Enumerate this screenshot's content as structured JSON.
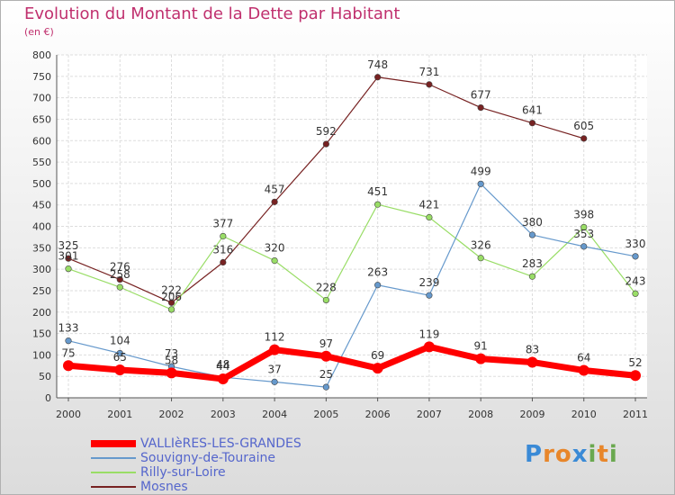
{
  "header": {
    "title": "Evolution du Montant de la Dette par Habitant",
    "unit": "(en €)"
  },
  "logo": {
    "letters": [
      "P",
      "r",
      "o",
      "x",
      "i",
      "t",
      "i"
    ],
    "colors": [
      "#3a8ad6",
      "#e8862a",
      "#e8862a",
      "#3a8ad6",
      "#6aa84f",
      "#e8862a",
      "#6aa84f"
    ]
  },
  "chart_data": {
    "type": "line",
    "title": "Evolution du Montant de la Dette par Habitant",
    "ylabel": "(en €)",
    "xlabel": "",
    "x": [
      "2000",
      "2001",
      "2002",
      "2003",
      "2004",
      "2005",
      "2006",
      "2007",
      "2008",
      "2009",
      "2010",
      "2011"
    ],
    "ylim": [
      0,
      800
    ],
    "yticks": [
      0,
      50,
      100,
      150,
      200,
      250,
      300,
      350,
      400,
      450,
      500,
      550,
      600,
      650,
      700,
      750,
      800
    ],
    "grid": true,
    "legend_position": "bottom-left",
    "series": [
      {
        "name": "VALLIèRES-LES-GRANDES",
        "color": "#ff0000",
        "values": [
          75,
          65,
          58,
          44,
          112,
          97,
          69,
          119,
          91,
          83,
          64,
          52
        ]
      },
      {
        "name": "Souvigny-de-Touraine",
        "color": "#6699cc",
        "values": [
          133,
          104,
          73,
          48,
          37,
          25,
          263,
          239,
          499,
          380,
          353,
          330
        ]
      },
      {
        "name": "Rilly-sur-Loire",
        "color": "#99dd66",
        "values": [
          301,
          258,
          206,
          377,
          320,
          228,
          451,
          421,
          326,
          283,
          398,
          243
        ]
      },
      {
        "name": "Mosnes",
        "color": "#772222",
        "values": [
          325,
          276,
          222,
          316,
          457,
          592,
          748,
          731,
          677,
          641,
          605,
          null
        ]
      }
    ]
  }
}
